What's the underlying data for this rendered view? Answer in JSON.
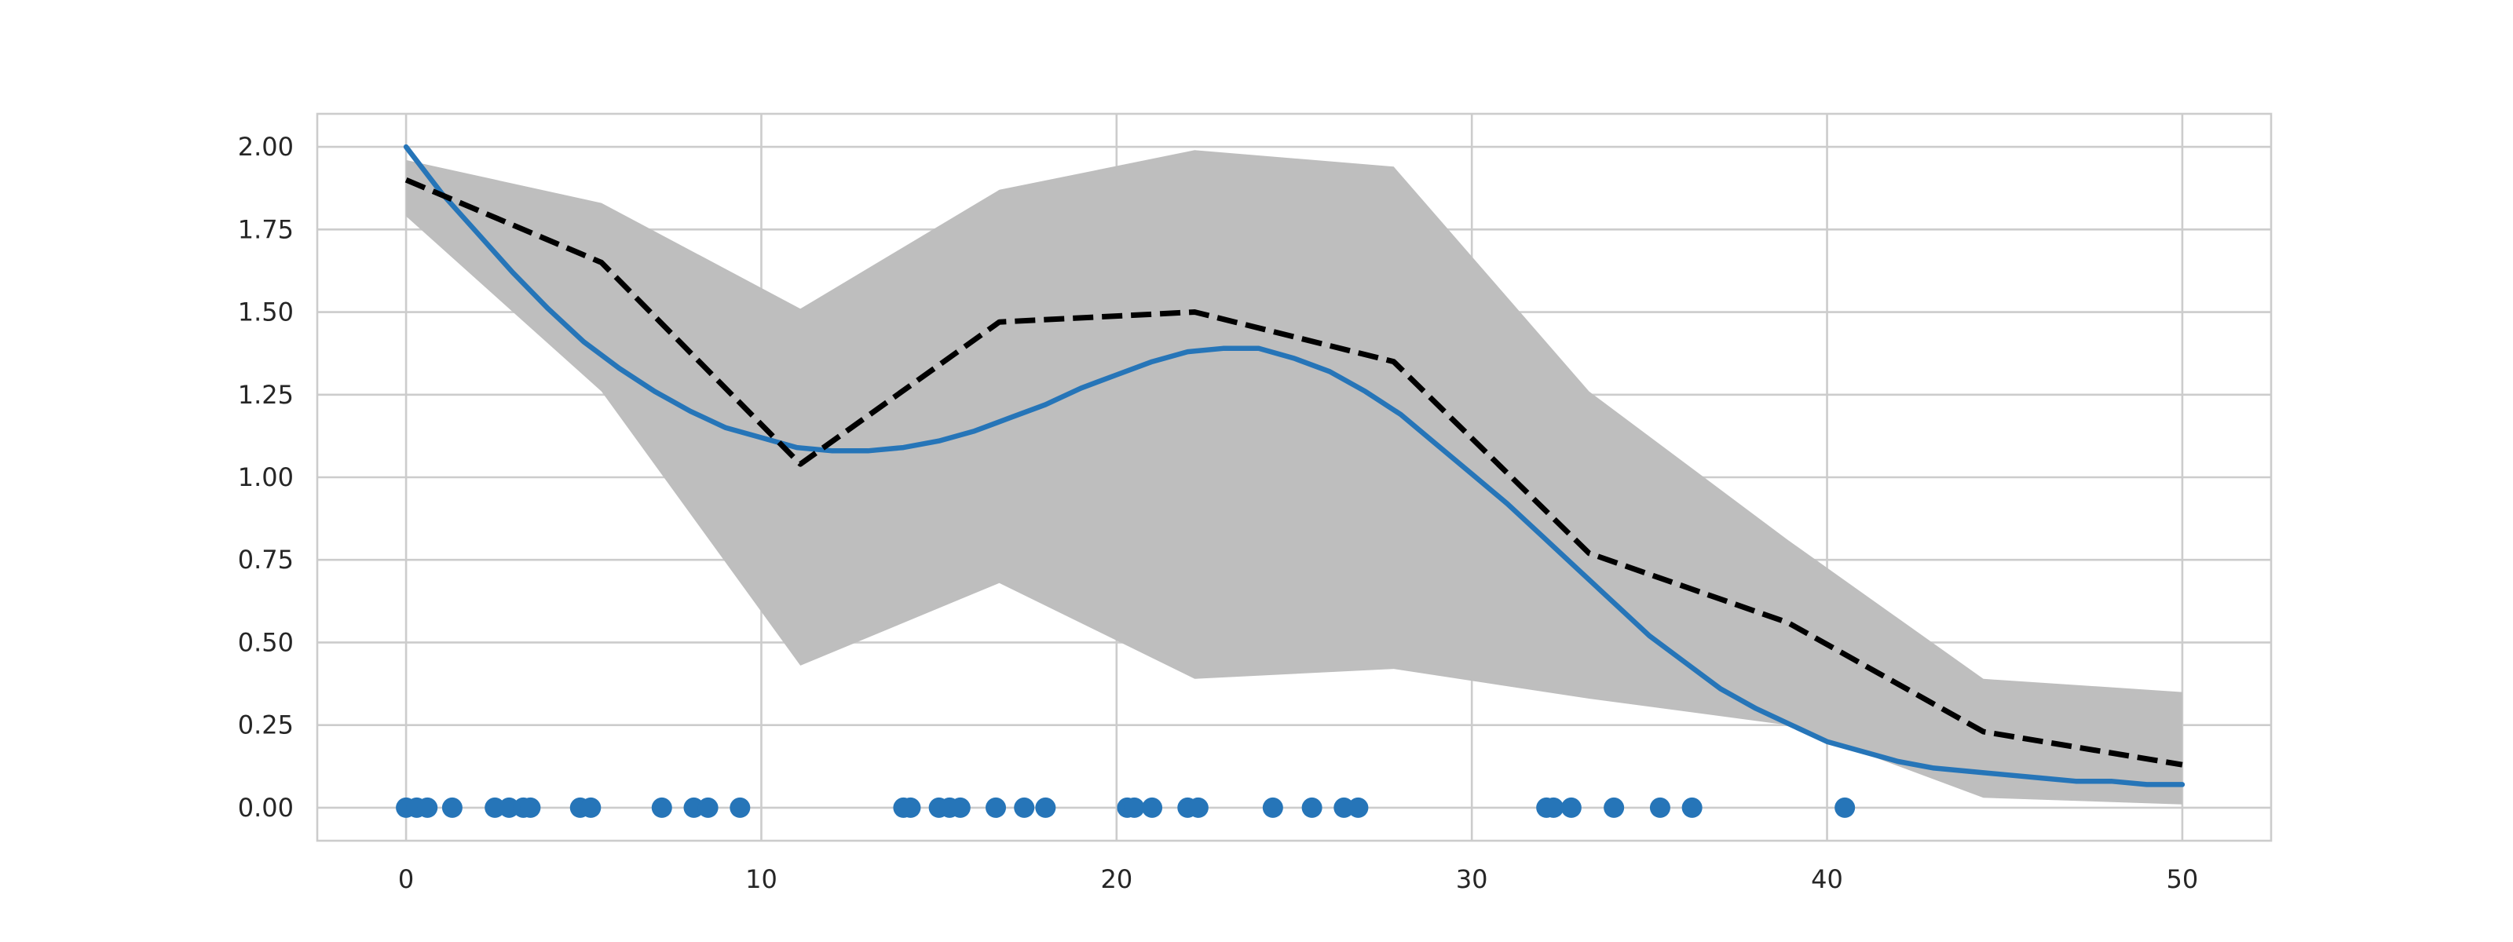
{
  "chart_data": {
    "type": "line",
    "title": "",
    "xlabel": "",
    "ylabel": "",
    "xlim": [
      -2.5,
      52.5
    ],
    "ylim": [
      -0.1,
      2.1
    ],
    "grid": true,
    "x_ticks": [
      0,
      10,
      20,
      30,
      40,
      50
    ],
    "y_ticks": [
      0.0,
      0.25,
      0.5,
      0.75,
      1.0,
      1.25,
      1.5,
      1.75,
      2.0
    ],
    "x_tick_labels": [
      "0",
      "10",
      "20",
      "30",
      "40",
      "50"
    ],
    "y_tick_labels": [
      "0.00",
      "0.25",
      "0.50",
      "0.75",
      "1.00",
      "1.25",
      "1.50",
      "1.75",
      "2.00"
    ],
    "colors": {
      "true_curve": "#2675b8",
      "estimate": "#000000",
      "band": "#bebebe",
      "points": "#2675b8"
    },
    "series": [
      {
        "role": "true-curve",
        "style": "solid",
        "x": [
          0,
          1,
          2,
          3,
          4,
          5,
          6,
          7,
          8,
          9,
          10,
          11,
          12,
          13,
          14,
          15,
          16,
          17,
          18,
          19,
          20,
          21,
          22,
          23,
          24,
          25,
          26,
          27,
          28,
          29,
          30,
          31,
          32,
          33,
          34,
          35,
          36,
          37,
          38,
          39,
          40,
          41,
          42,
          43,
          44,
          45,
          46,
          47,
          48,
          49,
          50
        ],
        "y": [
          2.0,
          1.86,
          1.74,
          1.62,
          1.51,
          1.41,
          1.33,
          1.26,
          1.2,
          1.15,
          1.12,
          1.09,
          1.08,
          1.08,
          1.09,
          1.11,
          1.14,
          1.18,
          1.22,
          1.27,
          1.31,
          1.35,
          1.38,
          1.39,
          1.39,
          1.36,
          1.32,
          1.26,
          1.19,
          1.1,
          1.01,
          0.92,
          0.82,
          0.72,
          0.62,
          0.52,
          0.44,
          0.36,
          0.3,
          0.25,
          0.2,
          0.17,
          0.14,
          0.12,
          0.11,
          0.1,
          0.09,
          0.08,
          0.08,
          0.07,
          0.07
        ]
      },
      {
        "role": "estimate",
        "style": "dashed",
        "x": [
          0,
          5.5,
          11.1,
          16.7,
          22.2,
          27.8,
          33.3,
          38.9,
          44.4,
          50
        ],
        "y": [
          1.9,
          1.65,
          1.04,
          1.47,
          1.5,
          1.35,
          0.77,
          0.56,
          0.23,
          0.13
        ]
      }
    ],
    "band": {
      "x": [
        0,
        5.5,
        11.1,
        16.7,
        22.2,
        27.8,
        33.3,
        38.9,
        44.4,
        50
      ],
      "upper": [
        1.96,
        1.83,
        1.51,
        1.87,
        1.99,
        1.94,
        1.26,
        0.81,
        0.39,
        0.35
      ],
      "lower": [
        1.79,
        1.26,
        0.43,
        0.68,
        0.39,
        0.42,
        0.33,
        0.25,
        0.03,
        0.01
      ]
    },
    "points": {
      "x": [
        0.0,
        0.3,
        0.6,
        1.3,
        2.5,
        2.9,
        3.3,
        3.5,
        4.9,
        5.2,
        7.2,
        8.1,
        8.5,
        9.4,
        14.0,
        14.2,
        15.0,
        15.3,
        15.6,
        16.6,
        17.4,
        18.0,
        20.3,
        20.5,
        21.0,
        22.0,
        22.3,
        24.4,
        25.5,
        26.4,
        26.8,
        32.1,
        32.3,
        32.8,
        34.0,
        35.3,
        36.2,
        40.5
      ],
      "y": 0.0
    }
  }
}
